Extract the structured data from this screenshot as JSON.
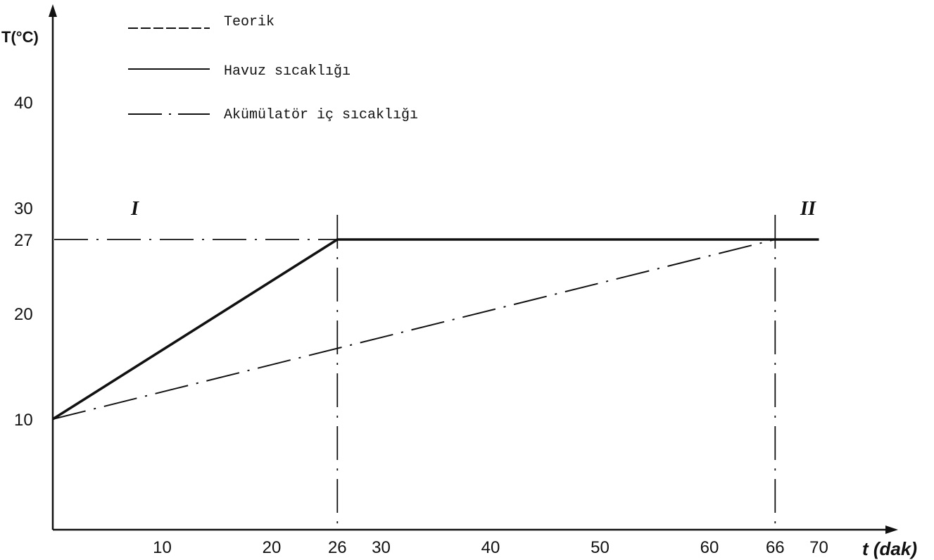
{
  "chart_data": {
    "type": "line",
    "xlabel": "t (dak)",
    "ylabel": "T(°C)",
    "x_ticks": [
      10,
      20,
      26,
      30,
      40,
      50,
      60,
      66,
      70
    ],
    "y_ticks": [
      10,
      20,
      27,
      30,
      40
    ],
    "xlim": [
      0,
      72
    ],
    "ylim": [
      0,
      45
    ],
    "series": [
      {
        "name": "Teorik",
        "style": "dashed",
        "x": [
          0,
          26
        ],
        "y": [
          10,
          27
        ]
      },
      {
        "name": "Havuz sıcaklığı",
        "style": "solid",
        "x": [
          0,
          26,
          70
        ],
        "y": [
          10,
          27,
          27
        ]
      },
      {
        "name": "Akümülatör iç sıcaklığı",
        "style": "dash-dot",
        "x": [
          0,
          66
        ],
        "y": [
          10,
          27
        ]
      }
    ],
    "reference_lines": [
      {
        "axis": "y",
        "value": 27,
        "style": "dash-dot"
      },
      {
        "axis": "x",
        "value": 26,
        "style": "dash-dot"
      },
      {
        "axis": "x",
        "value": 66,
        "style": "dash-dot"
      }
    ],
    "region_labels": [
      {
        "text": "I",
        "x": 7.5,
        "y": 30
      },
      {
        "text": "II",
        "x": 69,
        "y": 30
      }
    ],
    "legend_position": "top-left",
    "grid": false
  }
}
